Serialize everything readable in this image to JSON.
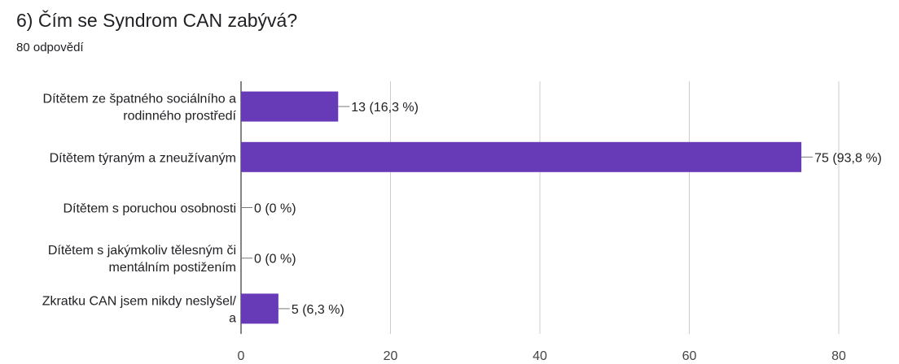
{
  "question": {
    "title": "6) Čím se Syndrom CAN zabývá?",
    "responses": "80 odpovědí"
  },
  "chart_data": {
    "type": "bar",
    "orientation": "horizontal",
    "categories": [
      [
        "Dítětem ze špatného sociálního a",
        "rodinného prostředí"
      ],
      [
        "Dítětem týraným a zneužívaným"
      ],
      [
        "Dítětem s poruchou osobnosti"
      ],
      [
        "Dítětem s jakýmkoliv tělesným či",
        "mentálním postižením"
      ],
      [
        "Zkratku CAN jsem nikdy neslyšel/",
        "a"
      ]
    ],
    "values": [
      13,
      75,
      0,
      0,
      5
    ],
    "value_labels": [
      "13 (16,3 %)",
      "75 (93,8 %)",
      "0 (0 %)",
      "0 (0 %)",
      "5 (6,3 %)"
    ],
    "xlim": [
      0,
      80
    ],
    "xticks": [
      0,
      20,
      40,
      60,
      80
    ],
    "grid": true,
    "bar_color": "#673ab7"
  }
}
